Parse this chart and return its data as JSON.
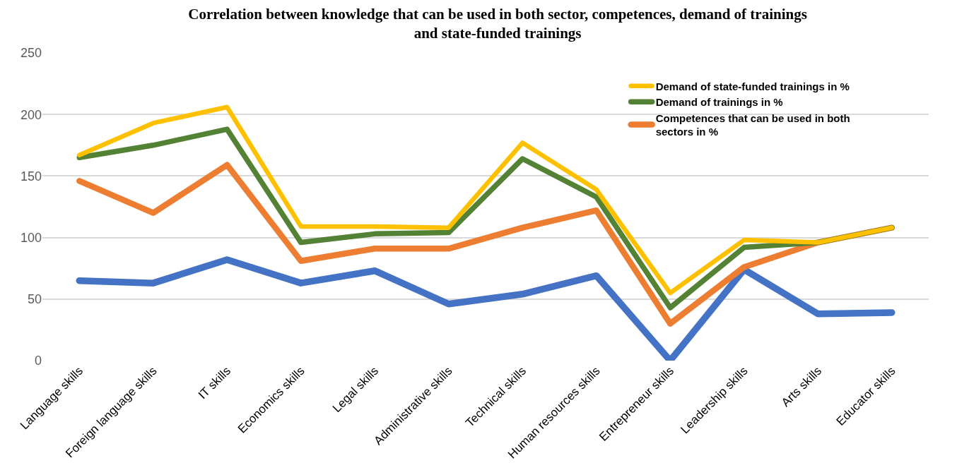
{
  "chart_data": {
    "type": "line",
    "title": "Correlation between knowledge that can be used in both sector, competences, demand of trainings and state-funded trainings",
    "categories": [
      "Language skills",
      "Foreign language skills",
      "IT skills",
      "Economics skills",
      "Legal skills",
      "Administrative skills",
      "Technical skills",
      "Human resources skills",
      "Entrepreneur skills",
      "Leadership skills",
      "Arts skills",
      "Educator skills"
    ],
    "series": [
      {
        "color": "#4472c4",
        "values": [
          65,
          63,
          82,
          63,
          73,
          46,
          54,
          69,
          0,
          74,
          38,
          39
        ]
      },
      {
        "name": "Competences that can be used in both sectors in %",
        "color": "#ed7d31",
        "values": [
          146,
          120,
          159,
          81,
          91,
          91,
          108,
          122,
          30,
          76,
          96,
          108
        ]
      },
      {
        "name": "Demand of trainings in %",
        "color": "#548235",
        "values": [
          165,
          175,
          188,
          96,
          103,
          104,
          164,
          133,
          43,
          92,
          96,
          108
        ]
      },
      {
        "name": "Demand of state-funded trainings in %",
        "color": "#ffc000",
        "values": [
          167,
          193,
          206,
          109,
          109,
          108,
          177,
          139,
          55,
          98,
          96,
          108
        ]
      }
    ],
    "ylim": [
      0,
      250
    ],
    "yticks": [
      0,
      50,
      100,
      150,
      200,
      250
    ],
    "grid": "y",
    "legend": "top right",
    "marker": "none",
    "line_style": "solid"
  }
}
